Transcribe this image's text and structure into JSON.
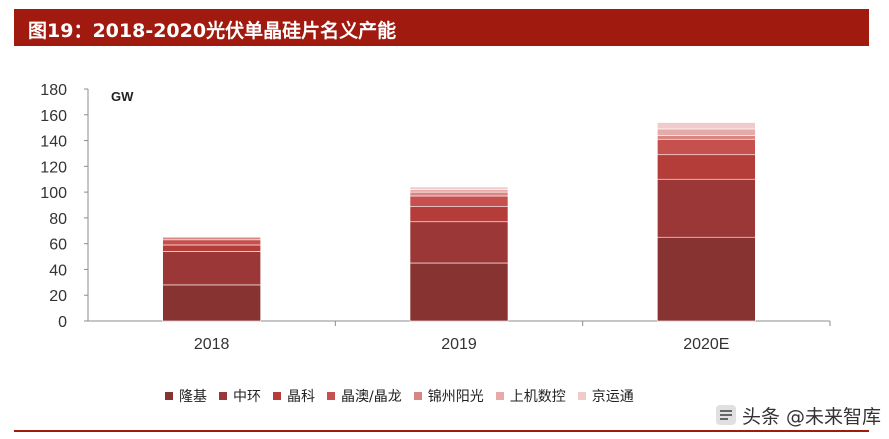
{
  "header": {
    "title": "图19：2018-2020光伏单晶硅片名义产能"
  },
  "watermark": {
    "text": "头条 @未来智库"
  },
  "chart_data": {
    "type": "bar",
    "stacked": true,
    "categories": [
      "2018",
      "2019",
      "2020E"
    ],
    "ylim": [
      0,
      180
    ],
    "yticks": [
      0,
      20,
      40,
      60,
      80,
      100,
      120,
      140,
      160,
      180
    ],
    "unit_label": "GW",
    "grid": false,
    "legend_position": "bottom",
    "series": [
      {
        "name": "隆基",
        "color": "#873332",
        "values": [
          28,
          45,
          65
        ]
      },
      {
        "name": "中环",
        "color": "#9b3837",
        "values": [
          26,
          32,
          45
        ]
      },
      {
        "name": "晶科",
        "color": "#b43d3a",
        "values": [
          5,
          12,
          19
        ]
      },
      {
        "name": "晶澳/晶龙",
        "color": "#c6504d",
        "values": [
          4,
          8,
          12
        ]
      },
      {
        "name": "锦州阳光",
        "color": "#d88683",
        "values": [
          2,
          3,
          3
        ]
      },
      {
        "name": "上机数控",
        "color": "#e6aaa8",
        "values": [
          0,
          2,
          5
        ]
      },
      {
        "name": "京运通",
        "color": "#efcccb",
        "values": [
          0,
          2,
          5
        ]
      }
    ]
  }
}
